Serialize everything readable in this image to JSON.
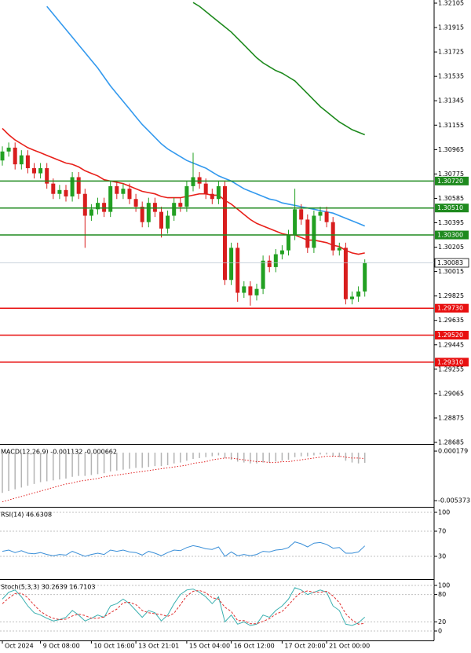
{
  "chart_data": [
    {
      "type": "candlestick",
      "categories": [
        "Oct 2024",
        null,
        null,
        null,
        null,
        null,
        "9 Oct 08:00",
        null,
        null,
        null,
        null,
        null,
        null,
        null,
        "10 Oct 16:00",
        null,
        null,
        null,
        null,
        null,
        null,
        "13 Oct 21:01",
        null,
        null,
        null,
        null,
        null,
        null,
        null,
        "15 Oct 04:00",
        null,
        null,
        null,
        null,
        null,
        null,
        "16 Oct 12:00",
        null,
        null,
        null,
        null,
        null,
        null,
        null,
        "17 Oct 20:00",
        null,
        null,
        null,
        null,
        null,
        null,
        "21 Oct 00:00",
        null,
        null,
        null,
        null,
        null,
        null
      ],
      "open": [
        1.3088,
        1.3095,
        1.3098,
        1.3085,
        1.3092,
        1.3082,
        1.3078,
        1.3082,
        1.307,
        1.3062,
        1.3065,
        1.306,
        1.3075,
        1.3062,
        1.3045,
        1.305,
        1.3055,
        1.3048,
        1.3068,
        1.3062,
        1.3066,
        1.3058,
        1.3052,
        1.304,
        1.3055,
        1.3048,
        1.3035,
        1.3045,
        1.3055,
        1.3052,
        1.3068,
        1.3075,
        1.307,
        1.3062,
        1.3058,
        1.3068,
        1.2995,
        1.302,
        1.2985,
        1.299,
        1.2983,
        1.2988,
        1.301,
        1.3005,
        1.3015,
        1.3018,
        1.303,
        1.305,
        1.3042,
        1.302,
        1.3045,
        1.3048,
        1.304,
        1.3018,
        1.302,
        1.298,
        1.2982,
        1.2986
      ],
      "high": [
        1.3099,
        1.3102,
        1.3102,
        1.3096,
        1.3096,
        1.3086,
        1.3086,
        1.3086,
        1.3074,
        1.3069,
        1.3069,
        1.3079,
        1.3079,
        1.3066,
        1.3054,
        1.3059,
        1.3059,
        1.3072,
        1.3072,
        1.307,
        1.307,
        1.3062,
        1.3056,
        1.3059,
        1.3059,
        1.3052,
        1.3049,
        1.3059,
        1.3059,
        1.3072,
        1.3094,
        1.3079,
        1.3074,
        1.3066,
        1.3072,
        1.3072,
        1.3024,
        1.3024,
        1.2994,
        1.2994,
        1.2992,
        1.3014,
        1.3014,
        1.3019,
        1.3022,
        1.3034,
        1.3066,
        1.3054,
        1.3046,
        1.3049,
        1.3052,
        1.3052,
        1.3044,
        1.3024,
        1.3024,
        1.2986,
        1.299,
        1.3011
      ],
      "low": [
        1.3084,
        1.3091,
        1.3081,
        1.3081,
        1.3078,
        1.3074,
        1.3074,
        1.3066,
        1.3058,
        1.3058,
        1.3056,
        1.3056,
        1.3058,
        1.302,
        1.3041,
        1.3046,
        1.3044,
        1.3044,
        1.3058,
        1.3058,
        1.3054,
        1.3048,
        1.3036,
        1.3036,
        1.3044,
        1.3028,
        1.3031,
        1.3041,
        1.3048,
        1.3048,
        1.3064,
        1.3066,
        1.3058,
        1.3054,
        1.3054,
        1.2991,
        1.2991,
        1.2978,
        1.2981,
        1.2975,
        1.2979,
        1.2984,
        1.3001,
        1.3001,
        1.3011,
        1.3014,
        1.3026,
        1.3038,
        1.3016,
        1.3016,
        1.3041,
        1.3036,
        1.3014,
        1.3014,
        1.2976,
        1.2976,
        1.2978,
        1.2982
      ],
      "close": [
        1.3095,
        1.3098,
        1.3085,
        1.3092,
        1.3082,
        1.3078,
        1.3082,
        1.307,
        1.3062,
        1.3065,
        1.306,
        1.3075,
        1.3062,
        1.3045,
        1.305,
        1.3055,
        1.3048,
        1.3068,
        1.3062,
        1.3066,
        1.3058,
        1.3052,
        1.304,
        1.3055,
        1.3048,
        1.3035,
        1.3045,
        1.3055,
        1.3052,
        1.3068,
        1.3075,
        1.307,
        1.3062,
        1.3058,
        1.3068,
        1.2995,
        1.302,
        1.2985,
        1.299,
        1.2983,
        1.2988,
        1.301,
        1.3005,
        1.3015,
        1.3018,
        1.303,
        1.305,
        1.3042,
        1.302,
        1.3045,
        1.3048,
        1.304,
        1.3018,
        1.302,
        1.298,
        1.2982,
        1.2986,
        1.30083
      ],
      "up_color": "#22a022",
      "down_color": "#d81e1e",
      "lines": [
        {
          "color": "#e8201a",
          "values": [
            1.3113,
            1.3108,
            1.3104,
            1.3101,
            1.3098,
            1.3096,
            1.3094,
            1.3092,
            1.309,
            1.3088,
            1.3086,
            1.3085,
            1.3083,
            1.308,
            1.3078,
            1.3076,
            1.3073,
            1.3072,
            1.3071,
            1.307,
            1.3068,
            1.3066,
            1.3064,
            1.3063,
            1.3062,
            1.306,
            1.3059,
            1.3059,
            1.3059,
            1.306,
            1.3061,
            1.3062,
            1.3062,
            1.3061,
            1.3061,
            1.3057,
            1.3054,
            1.305,
            1.3046,
            1.3042,
            1.3039,
            1.3037,
            1.3035,
            1.3033,
            1.3031,
            1.303,
            1.303,
            1.3028,
            1.3026,
            1.3026,
            1.3025,
            1.3024,
            1.3022,
            1.3021,
            1.3018,
            1.3016,
            1.3015,
            1.3016
          ]
        },
        {
          "color": "#3399ee",
          "values": [
            null,
            null,
            null,
            null,
            null,
            null,
            null,
            1.3208,
            1.3202,
            1.3196,
            1.319,
            1.3184,
            1.3178,
            1.3172,
            1.3166,
            1.316,
            1.3153,
            1.3146,
            1.314,
            1.3134,
            1.3128,
            1.3122,
            1.3116,
            1.3111,
            1.3106,
            1.3101,
            1.3097,
            1.3094,
            1.3091,
            1.3088,
            1.3086,
            1.3084,
            1.3082,
            1.3079,
            1.3076,
            1.3074,
            1.3072,
            1.3069,
            1.3066,
            1.3064,
            1.3062,
            1.306,
            1.3058,
            1.3057,
            1.3055,
            1.3054,
            1.3053,
            1.3052,
            1.3051,
            1.305,
            1.3049,
            1.3048,
            1.3047,
            1.3045,
            1.3043,
            1.3041,
            1.3039,
            1.3037
          ]
        },
        {
          "color": "#1e8a1e",
          "values": [
            null,
            null,
            null,
            null,
            null,
            null,
            null,
            null,
            null,
            null,
            null,
            null,
            null,
            null,
            null,
            null,
            null,
            null,
            null,
            null,
            null,
            null,
            null,
            null,
            null,
            null,
            null,
            null,
            null,
            null,
            1.3211,
            1.3208,
            1.3204,
            1.32,
            1.3196,
            1.3192,
            1.3188,
            1.3183,
            1.3178,
            1.3173,
            1.3168,
            1.3164,
            1.3161,
            1.3158,
            1.3156,
            1.3153,
            1.315,
            1.3145,
            1.314,
            1.3135,
            1.313,
            1.3126,
            1.3122,
            1.3118,
            1.3115,
            1.3112,
            1.311,
            1.3108
          ]
        }
      ],
      "levels": [
        {
          "value": 1.3072,
          "label": "1.30720",
          "color": "#1e8a1e"
        },
        {
          "value": 1.3051,
          "label": "1.30510",
          "color": "#1e8a1e"
        },
        {
          "value": 1.303,
          "label": "1.30300",
          "color": "#1e8a1e"
        },
        {
          "value": 1.2973,
          "label": "1.29730",
          "color": "#e81010"
        },
        {
          "value": 1.2952,
          "label": "1.29520",
          "color": "#e81010"
        },
        {
          "value": 1.2931,
          "label": "1.29310",
          "color": "#e81010"
        }
      ],
      "current": 1.30083,
      "ylim": [
        1.28685,
        1.32105
      ],
      "yticks": [
        1.32105,
        1.31915,
        1.31725,
        1.31535,
        1.31345,
        1.31155,
        1.30965,
        1.30775,
        1.30585,
        1.30395,
        1.30205,
        1.30015,
        1.29825,
        1.29635,
        1.29445,
        1.29255,
        1.29065,
        1.28875,
        1.28685
      ],
      "grid": false
    },
    {
      "type": "macd",
      "title": "MACD(12,26,9) -0.001132 -0.000662",
      "series": [
        {
          "color": "#b4b4b4",
          "values": [
            -0.0045,
            -0.0043,
            -0.0041,
            -0.0039,
            -0.0037,
            -0.0035,
            -0.0033,
            -0.0032,
            -0.0031,
            -0.003,
            -0.0029,
            -0.0027,
            -0.0026,
            -0.0026,
            -0.0025,
            -0.0024,
            -0.0023,
            -0.0021,
            -0.002,
            -0.0019,
            -0.0018,
            -0.0017,
            -0.0017,
            -0.0016,
            -0.0015,
            -0.0015,
            -0.0014,
            -0.0012,
            -0.0011,
            -0.0009,
            -0.0007,
            -0.0006,
            -0.0005,
            -0.0004,
            -0.0003,
            -0.0006,
            -0.0008,
            -0.001,
            -0.0011,
            -0.0012,
            -0.0012,
            -0.0011,
            -0.0011,
            -0.001,
            -0.0009,
            -0.0008,
            -0.0005,
            -0.0004,
            -0.0004,
            -0.0003,
            -0.0002,
            -0.0002,
            -0.0004,
            -0.0005,
            -0.0009,
            -0.0011,
            -0.0012,
            -0.001132
          ]
        },
        {
          "color": "#e02020",
          "style": "dotted",
          "values": [
            -0.0055,
            -0.0053,
            -0.0051,
            -0.0049,
            -0.0047,
            -0.0045,
            -0.0043,
            -0.0041,
            -0.0039,
            -0.0037,
            -0.0035,
            -0.0034,
            -0.0032,
            -0.0031,
            -0.003,
            -0.0029,
            -0.0027,
            -0.0026,
            -0.0025,
            -0.0024,
            -0.0023,
            -0.0022,
            -0.0021,
            -0.002,
            -0.0019,
            -0.0018,
            -0.0017,
            -0.0016,
            -0.0015,
            -0.0014,
            -0.0012,
            -0.0011,
            -0.001,
            -0.0008,
            -0.0007,
            -0.0006,
            -0.0006,
            -0.0007,
            -0.0008,
            -0.0009,
            -0.001,
            -0.001,
            -0.0011,
            -0.0011,
            -0.001,
            -0.001,
            -0.0009,
            -0.0008,
            -0.0007,
            -0.0006,
            -0.0005,
            -0.0004,
            -0.0004,
            -0.0004,
            -0.0005,
            -0.0006,
            -0.0006,
            -0.000662
          ]
        }
      ],
      "ylim": [
        -0.0058,
        0.0008
      ],
      "yticks": [
        0.000179,
        -0.005373
      ],
      "grid": false
    },
    {
      "type": "line",
      "title": "RSI(14) 46.6308",
      "series": [
        {
          "color": "#3a8fd8",
          "values": [
            38,
            40,
            36,
            39,
            35,
            34,
            36,
            33,
            31,
            33,
            32,
            38,
            34,
            30,
            33,
            35,
            33,
            40,
            38,
            40,
            37,
            36,
            32,
            38,
            35,
            31,
            36,
            40,
            39,
            44,
            47,
            45,
            42,
            41,
            45,
            30,
            37,
            31,
            33,
            31,
            33,
            38,
            37,
            40,
            41,
            44,
            53,
            50,
            45,
            51,
            52,
            49,
            43,
            44,
            35,
            35,
            37,
            46.6308
          ]
        }
      ],
      "ylim": [
        0,
        100
      ],
      "yticks": [
        100,
        70,
        30
      ],
      "grid": true
    },
    {
      "type": "line",
      "title": "Stoch(5,3,3) 30.2639 16.7103",
      "series": [
        {
          "color": "#3ab0b0",
          "values": [
            70,
            85,
            90,
            75,
            55,
            40,
            35,
            28,
            22,
            25,
            30,
            45,
            35,
            22,
            28,
            35,
            30,
            55,
            60,
            70,
            60,
            45,
            30,
            45,
            40,
            22,
            35,
            60,
            80,
            90,
            92,
            85,
            75,
            60,
            75,
            20,
            35,
            15,
            20,
            12,
            15,
            35,
            30,
            45,
            55,
            70,
            95,
            90,
            80,
            85,
            90,
            85,
            55,
            45,
            15,
            12,
            18,
            30.2639
          ]
        },
        {
          "color": "#e03030",
          "style": "dashed",
          "values": [
            60,
            72,
            82,
            83,
            73,
            57,
            43,
            34,
            28,
            25,
            26,
            33,
            37,
            34,
            28,
            28,
            31,
            40,
            48,
            62,
            63,
            58,
            45,
            40,
            38,
            36,
            32,
            39,
            58,
            77,
            87,
            89,
            84,
            73,
            70,
            52,
            43,
            23,
            23,
            16,
            16,
            21,
            27,
            37,
            43,
            57,
            73,
            85,
            88,
            85,
            85,
            87,
            77,
            62,
            38,
            24,
            15,
            16.7103
          ]
        }
      ],
      "ylim": [
        0,
        100
      ],
      "yticks": [
        100,
        80,
        20,
        0
      ],
      "grid": true
    }
  ]
}
